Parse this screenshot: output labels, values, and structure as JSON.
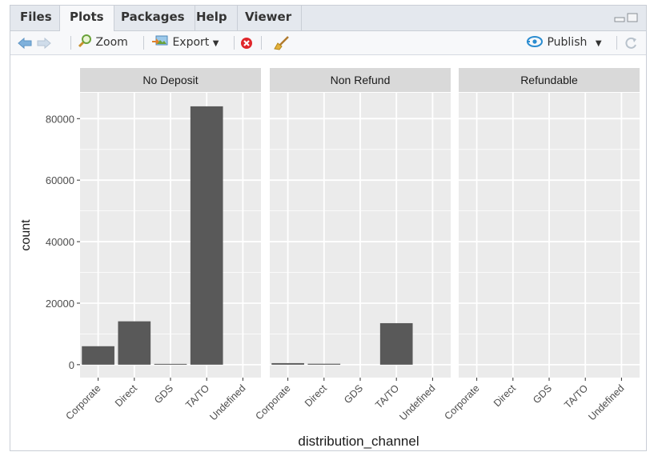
{
  "tabs": [
    {
      "label": "Files",
      "active": false
    },
    {
      "label": "Plots",
      "active": true
    },
    {
      "label": "Packages",
      "active": false
    },
    {
      "label": "Help",
      "active": false
    },
    {
      "label": "Viewer",
      "active": false
    }
  ],
  "toolbar": {
    "zoom_label": "Zoom",
    "export_label": "Export",
    "publish_label": "Publish"
  },
  "colors": {
    "panel_bg": "#ebebeb",
    "strip_bg": "#d9d9d9",
    "bar_fill": "#595959",
    "grid": "#ffffff"
  },
  "chart_data": {
    "type": "bar",
    "facets": [
      "No Deposit",
      "Non Refund",
      "Refundable"
    ],
    "categories": [
      "Corporate",
      "Direct",
      "GDS",
      "TA/TO",
      "Undefined"
    ],
    "series": [
      {
        "facet": "No Deposit",
        "values": [
          6000,
          14100,
          200,
          84000,
          0
        ]
      },
      {
        "facet": "Non Refund",
        "values": [
          500,
          300,
          0,
          13500,
          0
        ]
      },
      {
        "facet": "Refundable",
        "values": [
          0,
          0,
          0,
          0,
          0
        ]
      }
    ],
    "xlabel": "distribution_channel",
    "ylabel": "count",
    "yticks": [
      0,
      20000,
      40000,
      60000,
      80000
    ],
    "ytick_labels": [
      "0",
      "20000",
      "40000",
      "60000",
      "80000"
    ],
    "ylim": [
      -4200,
      88400
    ],
    "grid": true
  }
}
